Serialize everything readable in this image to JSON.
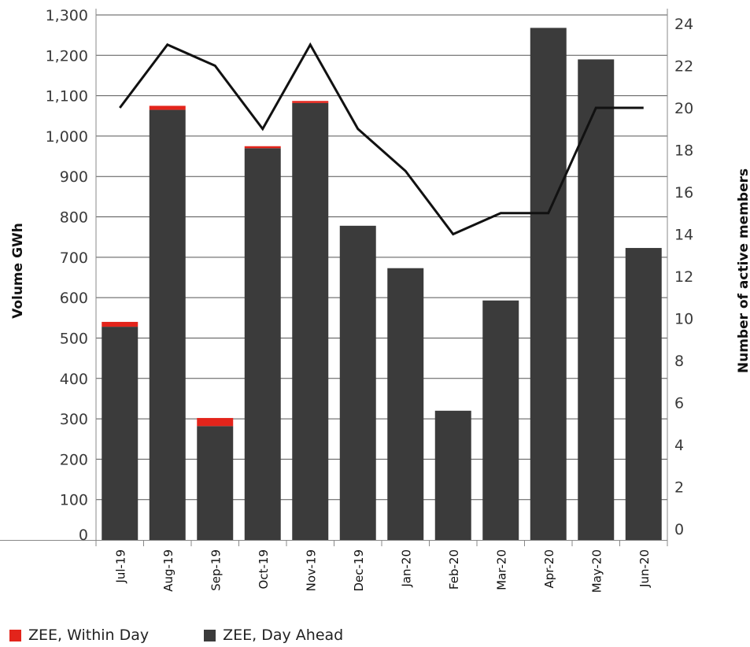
{
  "chart_data": {
    "type": "bar",
    "stacked": true,
    "categories": [
      "Jul-19",
      "Aug-19",
      "Sep-19",
      "Oct-19",
      "Nov-19",
      "Dec-19",
      "Jan-20",
      "Feb-20",
      "Mar-20",
      "Apr-20",
      "May-20",
      "Jun-20"
    ],
    "series": [
      {
        "name": "ZEE, Day Ahead",
        "type": "bar",
        "axis": "left",
        "color": "#3b3b3b",
        "values": [
          528,
          1065,
          282,
          970,
          1082,
          778,
          673,
          320,
          593,
          1268,
          1190,
          723
        ]
      },
      {
        "name": "ZEE, Within Day",
        "type": "bar",
        "axis": "left",
        "color": "#e3241b",
        "values": [
          12,
          10,
          20,
          5,
          5,
          0,
          0,
          0,
          0,
          0,
          0,
          0
        ]
      },
      {
        "type": "line",
        "axis": "right",
        "color": "#111111",
        "values": [
          20,
          23,
          22,
          19,
          23,
          19,
          17,
          14,
          15,
          15,
          20,
          20
        ]
      }
    ],
    "ylabel": "Volume GWh",
    "y2label": "Number of active members",
    "ylim": [
      0,
      1300
    ],
    "y2lim": [
      0,
      24
    ],
    "yticks": [
      "0",
      "100",
      "200",
      "300",
      "400",
      "500",
      "600",
      "700",
      "800",
      "900",
      "1,000",
      "1,100",
      "1,200",
      "1,300"
    ],
    "y2ticks": [
      "0",
      "2",
      "4",
      "6",
      "8",
      "10",
      "12",
      "14",
      "16",
      "18",
      "20",
      "22",
      "24"
    ],
    "grid": true,
    "legend_position": "bottom-left"
  },
  "legend": [
    {
      "label": "ZEE, Within Day",
      "color": "#e3241b"
    },
    {
      "label": "ZEE, Day Ahead",
      "color": "#3b3b3b"
    }
  ]
}
